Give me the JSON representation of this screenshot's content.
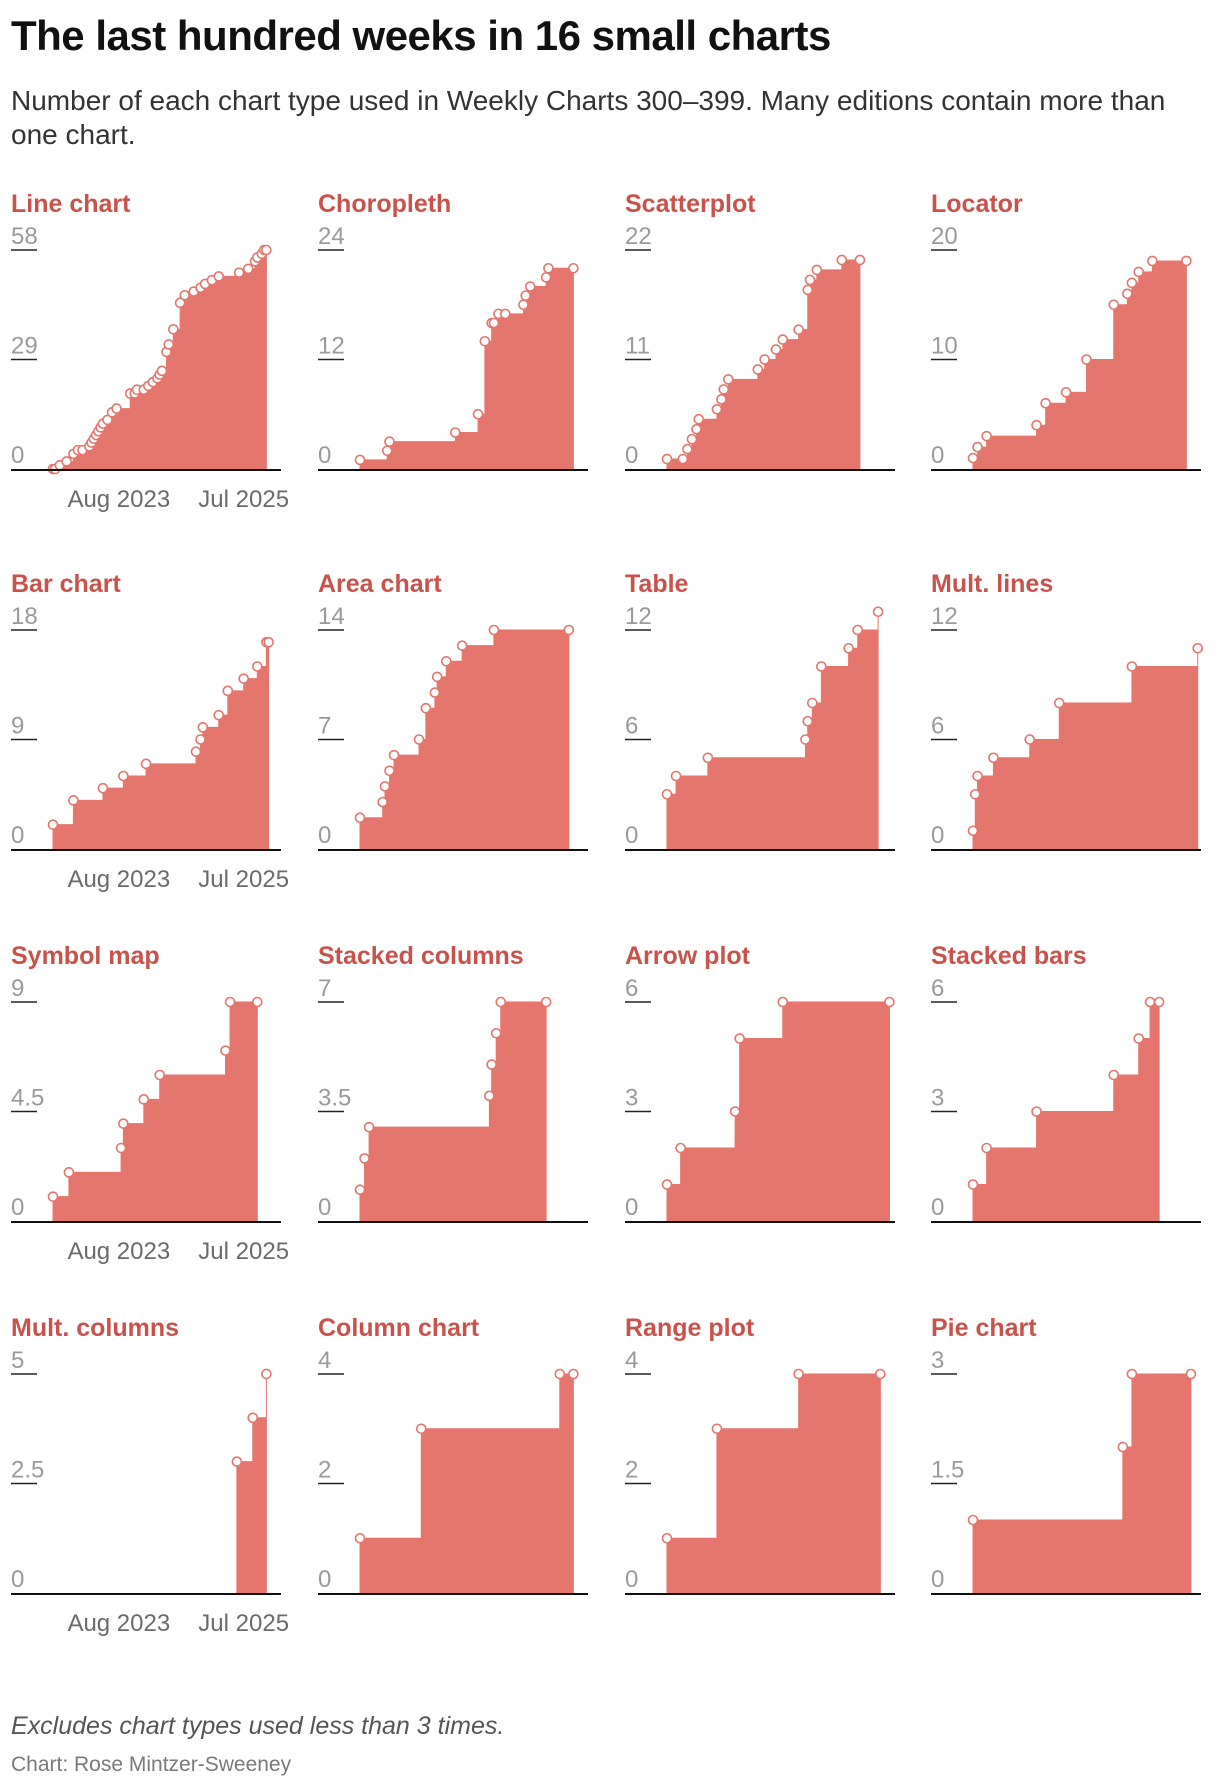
{
  "title": "The last hundred weeks in 16 small charts",
  "subtitle": "Number of each chart type used in Weekly Charts 300–399. Many editions contain more than one chart.",
  "note": "Excludes chart types used less than 3 times.",
  "credit": "Chart: Rose Mintzer-Sweeney",
  "colors": {
    "fill": "#e5766e",
    "title": "#c8524c",
    "axis": "#111111",
    "tick": "#9a9a9a",
    "marker_stroke": "#e5766e",
    "marker_fill": "#ffffff"
  },
  "chart_data": {
    "type": "area",
    "subtype": "step-area small multiples (cumulative count by week)",
    "x_domain": [
      0,
      100
    ],
    "x_unit": "week index (0 = Weekly Chart 300, 100 = Weekly Chart 399)",
    "x_tick_labels": [
      "Aug 2023",
      "Jul 2025"
    ],
    "x_tick_positions": [
      29,
      84
    ],
    "panels": [
      {
        "name": "Line chart",
        "ylim": [
          0,
          58
        ],
        "ticks": [
          "0",
          "29",
          "58"
        ],
        "points": [
          [
            0,
            0
          ],
          [
            1,
            0
          ],
          [
            3,
            1
          ],
          [
            6,
            2
          ],
          [
            9,
            4
          ],
          [
            11,
            5
          ],
          [
            13,
            5
          ],
          [
            16,
            6
          ],
          [
            17,
            7
          ],
          [
            18,
            8
          ],
          [
            19,
            9
          ],
          [
            20,
            10
          ],
          [
            21,
            11
          ],
          [
            22,
            12
          ],
          [
            24,
            13
          ],
          [
            26,
            15
          ],
          [
            28,
            16
          ],
          [
            34,
            20
          ],
          [
            36,
            20
          ],
          [
            37,
            21
          ],
          [
            40,
            21
          ],
          [
            42,
            22
          ],
          [
            44,
            23
          ],
          [
            46,
            24
          ],
          [
            47,
            25
          ],
          [
            48,
            26
          ],
          [
            50,
            31
          ],
          [
            51,
            33
          ],
          [
            53,
            37
          ],
          [
            56,
            44
          ],
          [
            58,
            46
          ],
          [
            62,
            47
          ],
          [
            65,
            48
          ],
          [
            67,
            49
          ],
          [
            70,
            50
          ],
          [
            73,
            51
          ],
          [
            82,
            52
          ],
          [
            86,
            53
          ],
          [
            89,
            55
          ],
          [
            90,
            56
          ],
          [
            92,
            57
          ],
          [
            93,
            58
          ],
          [
            94,
            58
          ]
        ]
      },
      {
        "name": "Choropleth",
        "ylim": [
          0,
          24
        ],
        "ticks": [
          "0",
          "12",
          "24"
        ],
        "points": [
          [
            0,
            1
          ],
          [
            12,
            2
          ],
          [
            13,
            3
          ],
          [
            42,
            4
          ],
          [
            52,
            6
          ],
          [
            55,
            14
          ],
          [
            58,
            16
          ],
          [
            59,
            16
          ],
          [
            61,
            17
          ],
          [
            64,
            17
          ],
          [
            72,
            18
          ],
          [
            73,
            19
          ],
          [
            75,
            20
          ],
          [
            82,
            21
          ],
          [
            83,
            22
          ],
          [
            94,
            22
          ]
        ]
      },
      {
        "name": "Scatterplot",
        "ylim": [
          0,
          22
        ],
        "ticks": [
          "0",
          "11",
          "22"
        ],
        "points": [
          [
            0,
            1
          ],
          [
            7,
            1
          ],
          [
            9,
            2
          ],
          [
            11,
            3
          ],
          [
            13,
            4
          ],
          [
            14,
            5
          ],
          [
            22,
            6
          ],
          [
            24,
            7
          ],
          [
            25,
            8
          ],
          [
            27,
            9
          ],
          [
            40,
            10
          ],
          [
            43,
            11
          ],
          [
            48,
            12
          ],
          [
            51,
            13
          ],
          [
            58,
            14
          ],
          [
            62,
            18
          ],
          [
            63,
            19
          ],
          [
            66,
            20
          ],
          [
            77,
            21
          ],
          [
            85,
            21
          ]
        ]
      },
      {
        "name": "Locator",
        "ylim": [
          0,
          20
        ],
        "ticks": [
          "0",
          "10",
          "20"
        ],
        "points": [
          [
            0,
            1
          ],
          [
            2,
            2
          ],
          [
            6,
            3
          ],
          [
            28,
            4
          ],
          [
            32,
            6
          ],
          [
            41,
            7
          ],
          [
            50,
            10
          ],
          [
            62,
            15
          ],
          [
            68,
            16
          ],
          [
            70,
            17
          ],
          [
            73,
            18
          ],
          [
            79,
            19
          ],
          [
            94,
            19
          ]
        ]
      },
      {
        "name": "Bar chart",
        "ylim": [
          0,
          18
        ],
        "ticks": [
          "0",
          "9",
          "18"
        ],
        "points": [
          [
            0,
            2
          ],
          [
            9,
            4
          ],
          [
            22,
            5
          ],
          [
            31,
            6
          ],
          [
            41,
            7
          ],
          [
            63,
            8
          ],
          [
            65,
            9
          ],
          [
            66,
            10
          ],
          [
            73,
            11
          ],
          [
            77,
            13
          ],
          [
            84,
            14
          ],
          [
            90,
            15
          ],
          [
            94,
            17
          ],
          [
            95,
            17
          ]
        ]
      },
      {
        "name": "Area chart",
        "ylim": [
          0,
          14
        ],
        "ticks": [
          "0",
          "7",
          "14"
        ],
        "points": [
          [
            0,
            2
          ],
          [
            10,
            3
          ],
          [
            11,
            4
          ],
          [
            13,
            5
          ],
          [
            15,
            6
          ],
          [
            26,
            7
          ],
          [
            29,
            9
          ],
          [
            33,
            10
          ],
          [
            34,
            11
          ],
          [
            38,
            12
          ],
          [
            45,
            13
          ],
          [
            59,
            14
          ],
          [
            92,
            14
          ]
        ]
      },
      {
        "name": "Table",
        "ylim": [
          0,
          12
        ],
        "ticks": [
          "0",
          "6",
          "12"
        ],
        "points": [
          [
            0,
            3
          ],
          [
            4,
            4
          ],
          [
            18,
            5
          ],
          [
            61,
            6
          ],
          [
            62,
            7
          ],
          [
            64,
            8
          ],
          [
            68,
            10
          ],
          [
            80,
            11
          ],
          [
            84,
            12
          ],
          [
            93,
            13
          ]
        ]
      },
      {
        "name": "Mult. lines",
        "ylim": [
          0,
          12
        ],
        "ticks": [
          "0",
          "6",
          "12"
        ],
        "points": [
          [
            0,
            1
          ],
          [
            1,
            3
          ],
          [
            2,
            4
          ],
          [
            9,
            5
          ],
          [
            25,
            6
          ],
          [
            38,
            8
          ],
          [
            70,
            10
          ],
          [
            99,
            11
          ]
        ]
      },
      {
        "name": "Symbol map",
        "ylim": [
          0,
          9
        ],
        "ticks": [
          "0",
          "4.5",
          "9"
        ],
        "points": [
          [
            0,
            1
          ],
          [
            7,
            2
          ],
          [
            30,
            3
          ],
          [
            31,
            4
          ],
          [
            40,
            5
          ],
          [
            47,
            6
          ],
          [
            76,
            7
          ],
          [
            78,
            9
          ],
          [
            90,
            9
          ]
        ]
      },
      {
        "name": "Stacked columns",
        "ylim": [
          0,
          7
        ],
        "ticks": [
          "0",
          "3.5",
          "7"
        ],
        "points": [
          [
            0,
            1
          ],
          [
            2,
            2
          ],
          [
            4,
            3
          ],
          [
            57,
            4
          ],
          [
            58,
            5
          ],
          [
            60,
            6
          ],
          [
            62,
            7
          ],
          [
            82,
            7
          ]
        ]
      },
      {
        "name": "Arrow plot",
        "ylim": [
          0,
          6
        ],
        "ticks": [
          "0",
          "3",
          "6"
        ],
        "points": [
          [
            0,
            1
          ],
          [
            6,
            2
          ],
          [
            30,
            3
          ],
          [
            32,
            5
          ],
          [
            51,
            6
          ],
          [
            98,
            6
          ]
        ]
      },
      {
        "name": "Stacked bars",
        "ylim": [
          0,
          6
        ],
        "ticks": [
          "0",
          "3",
          "6"
        ],
        "points": [
          [
            0,
            1
          ],
          [
            6,
            2
          ],
          [
            28,
            3
          ],
          [
            62,
            4
          ],
          [
            73,
            5
          ],
          [
            78,
            6
          ],
          [
            82,
            6
          ]
        ]
      },
      {
        "name": "Mult. columns",
        "ylim": [
          0,
          5
        ],
        "ticks": [
          "0",
          "2.5",
          "5"
        ],
        "points": [
          [
            81,
            3
          ],
          [
            88,
            4
          ],
          [
            94,
            5
          ]
        ]
      },
      {
        "name": "Column chart",
        "ylim": [
          0,
          4
        ],
        "ticks": [
          "0",
          "2",
          "4"
        ],
        "points": [
          [
            0,
            1
          ],
          [
            27,
            3
          ],
          [
            88,
            4
          ],
          [
            94,
            4
          ]
        ]
      },
      {
        "name": "Range plot",
        "ylim": [
          0,
          4
        ],
        "ticks": [
          "0",
          "2",
          "4"
        ],
        "points": [
          [
            0,
            1
          ],
          [
            22,
            3
          ],
          [
            58,
            4
          ],
          [
            94,
            4
          ]
        ]
      },
      {
        "name": "Pie chart",
        "ylim": [
          0,
          3
        ],
        "ticks": [
          "0",
          "1.5",
          "3"
        ],
        "points": [
          [
            0,
            1
          ],
          [
            66,
            2
          ],
          [
            70,
            3
          ],
          [
            96,
            3
          ]
        ]
      }
    ]
  }
}
